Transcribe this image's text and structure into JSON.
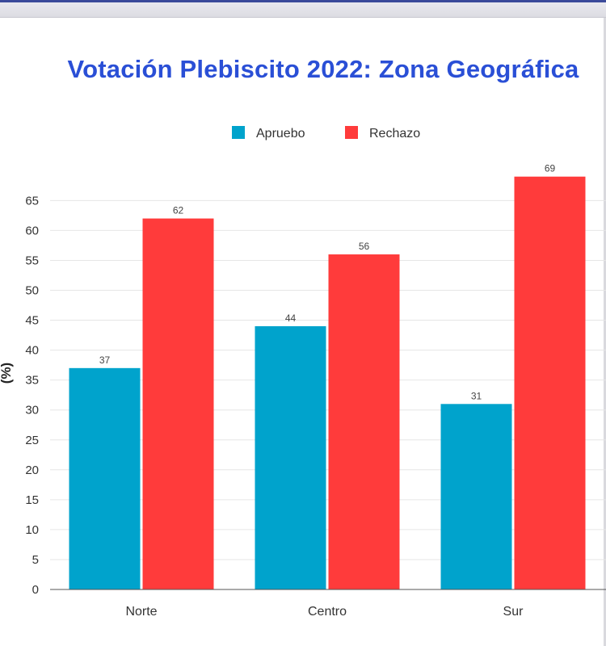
{
  "chart_data": {
    "type": "bar",
    "title": "Votación Plebiscito 2022: Zona Geográfica",
    "categories": [
      "Norte",
      "Centro",
      "Sur"
    ],
    "series": [
      {
        "name": "Apruebo",
        "values": [
          37,
          44,
          31
        ],
        "color": "#00a3cc"
      },
      {
        "name": "Rechazo",
        "values": [
          62,
          56,
          69
        ],
        "color": "#ff3b3b"
      }
    ],
    "ylabel": "(%)",
    "xlabel": "",
    "ylim": [
      0,
      69
    ],
    "yticks": [
      0,
      5,
      10,
      15,
      20,
      25,
      30,
      35,
      40,
      45,
      50,
      55,
      60,
      65
    ],
    "grid": true,
    "legend_position": "top-center",
    "title_color": "#2a4fd6"
  }
}
